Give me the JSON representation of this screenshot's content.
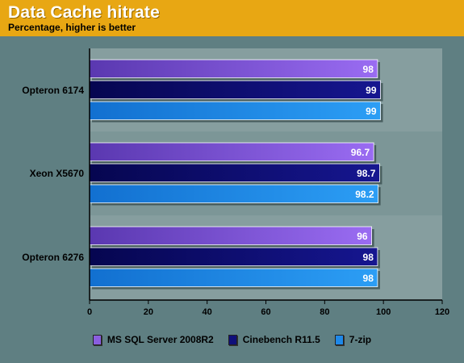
{
  "header": {
    "title": "Data Cache hitrate",
    "subtitle": "Percentage, higher is better"
  },
  "colors": {
    "background": "#5f7f82",
    "header": "#e8a713",
    "plot_area": "#7a9596",
    "series": [
      "#8a5ee0",
      "#10107a",
      "#1e88e8"
    ]
  },
  "chart_data": {
    "type": "bar",
    "orientation": "horizontal",
    "title": "Data Cache hitrate",
    "subtitle": "Percentage, higher is better",
    "categories": [
      "Opteron 6174",
      "Xeon X5670",
      "Opteron 6276"
    ],
    "series": [
      {
        "name": "MS SQL Server 2008R2",
        "values": [
          98,
          96.7,
          96
        ],
        "labels": [
          "98",
          "96.7",
          "96"
        ]
      },
      {
        "name": "Cinebench R11.5",
        "values": [
          99,
          98.7,
          98
        ],
        "labels": [
          "99",
          "98.7",
          "98"
        ]
      },
      {
        "name": "7-zip",
        "values": [
          99,
          98.2,
          98
        ],
        "labels": [
          "99",
          "98.2",
          "98"
        ]
      }
    ],
    "xlim": [
      0,
      120
    ],
    "xticks": [
      "0",
      "20",
      "40",
      "60",
      "80",
      "100",
      "120"
    ],
    "grid": false,
    "legend_position": "bottom"
  }
}
